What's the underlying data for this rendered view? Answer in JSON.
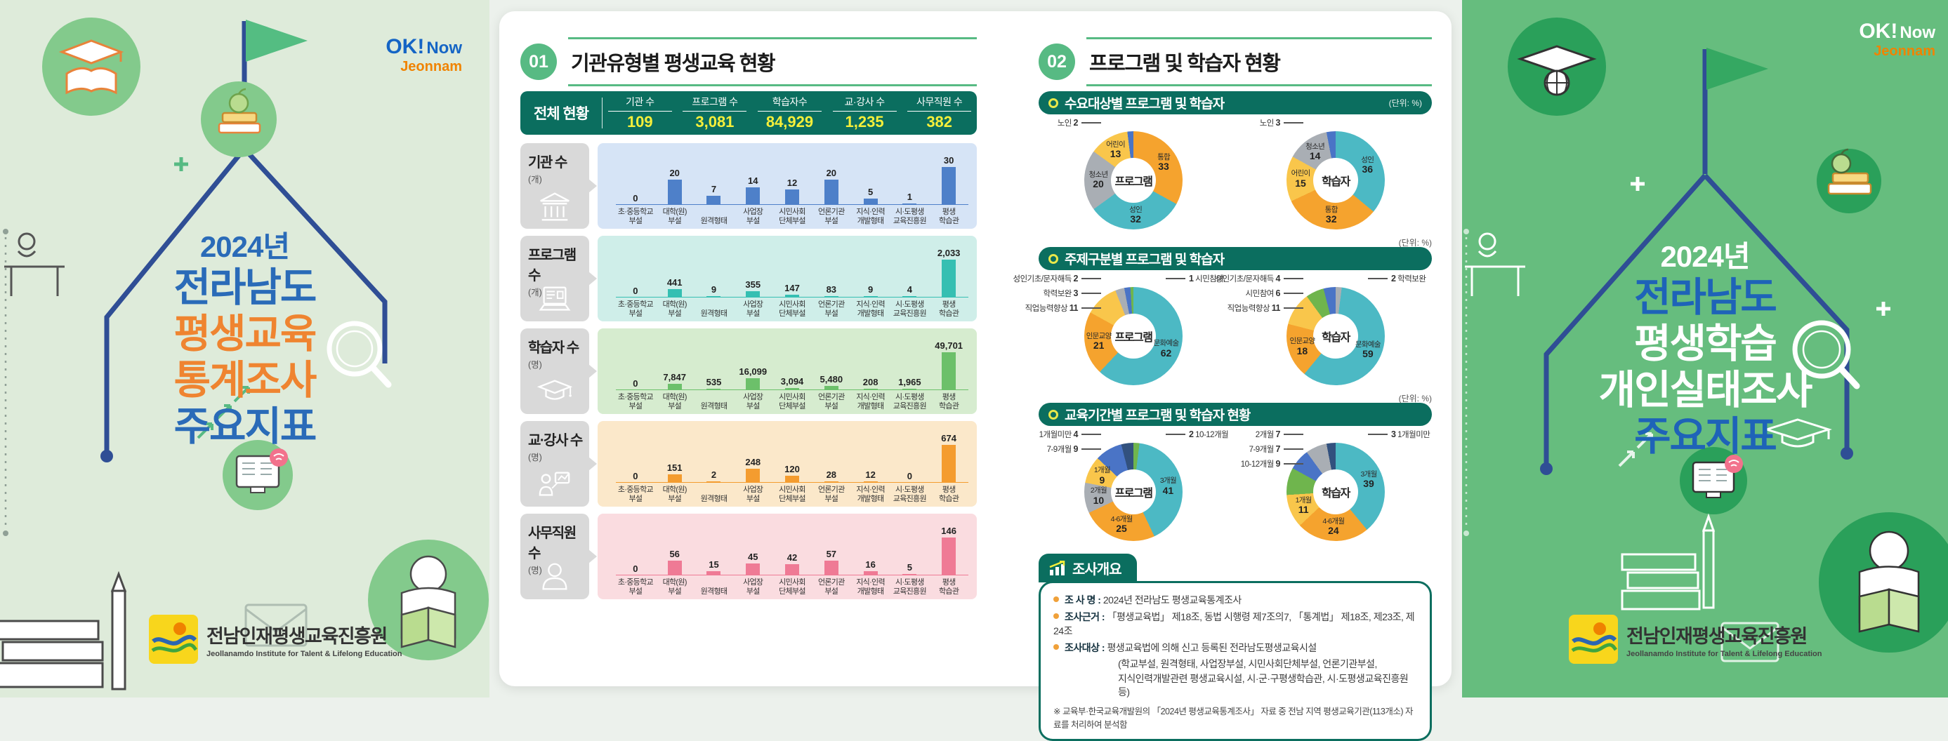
{
  "left_panel": {
    "ok_logo": {
      "ok": "OK!",
      "now": "Now",
      "jeonnam": "Jeonnam"
    },
    "title": [
      {
        "text": "2024년",
        "color": "#2A6BB8",
        "size": "small"
      },
      {
        "text": "전라남도",
        "color": "#2A6BB8"
      },
      {
        "text": "평생교육",
        "color": "#EF8430"
      },
      {
        "text": "통계조사",
        "color": "#EF8430"
      },
      {
        "text": "주요지표",
        "color": "#2A6BB8"
      }
    ],
    "logo": {
      "name": "전남인재평생교육진흥원",
      "sub": "Jeollanamdo Institute for Talent & Lifelong Education"
    }
  },
  "right_panel": {
    "ok_logo": {
      "ok": "OK!",
      "now": "Now",
      "jeonnam": "Jeonnam"
    },
    "title": [
      {
        "text": "2024년",
        "color": "#FFFFFF",
        "size": "small"
      },
      {
        "text": "전라남도",
        "color": "#1E63B8"
      },
      {
        "text": "평생학습",
        "color": "#FFFFFF"
      },
      {
        "text": "개인실태조사",
        "color": "#FFFFFF"
      },
      {
        "text": "주요지표",
        "color": "#1E63B8"
      }
    ],
    "logo": {
      "name": "전남인재평생교육진흥원",
      "sub": "Jeollanamdo Institute for Talent & Lifelong Education"
    }
  },
  "section1": {
    "badge": "01",
    "title": "기관유형별 평생교육 현황",
    "summary": {
      "row_label": "전체 현황",
      "value_color": "#F6EF3A",
      "cols": [
        {
          "label": "기관 수",
          "value": "109"
        },
        {
          "label": "프로그램 수",
          "value": "3,081"
        },
        {
          "label": "학습자수",
          "value": "84,929"
        },
        {
          "label": "교·강사 수",
          "value": "1,235"
        },
        {
          "label": "사무직원 수",
          "value": "382"
        }
      ]
    }
  },
  "section2": {
    "badge": "02",
    "title": "프로그램 및 학습자 현황"
  },
  "chart_data": {
    "bar": {
      "type": "bar",
      "categories": [
        "초·중등학교\n부설",
        "대학(원)\n부설",
        "원격형태",
        "사업장\n부설",
        "시민사회\n단체부설",
        "언론기관\n부설",
        "지식·인력\n개발형태",
        "시·도평생\n교육진흥원",
        "평생\n학습관"
      ],
      "charts": [
        {
          "name": "기관 수",
          "unit": "(개)",
          "icon": "bank-icon",
          "bg": "#D6E4F6",
          "bar_color": "#4E80C9",
          "values": [
            0,
            20,
            7,
            14,
            12,
            20,
            5,
            1,
            30
          ],
          "value_labels": [
            "0",
            "20",
            "7",
            "14",
            "12",
            "20",
            "5",
            "1",
            "30"
          ]
        },
        {
          "name": "프로그램 수",
          "unit": "(개)",
          "icon": "laptop-icon",
          "bg": "#CFEEE9",
          "bar_color": "#35BFB2",
          "values": [
            0,
            441,
            9,
            355,
            147,
            83,
            9,
            4,
            2033
          ],
          "value_labels": [
            "0",
            "441",
            "9",
            "355",
            "147",
            "83",
            "9",
            "4",
            "2,033"
          ]
        },
        {
          "name": "학습자 수",
          "unit": "(명)",
          "icon": "gradcap-icon",
          "bg": "#D6ECCF",
          "bar_color": "#6CC06A",
          "values": [
            0,
            7847,
            535,
            16099,
            3094,
            5480,
            208,
            1965,
            49701
          ],
          "value_labels": [
            "0",
            "7,847",
            "535",
            "16,099",
            "3,094",
            "5,480",
            "208",
            "1,965",
            "49,701"
          ]
        },
        {
          "name": "교·강사 수",
          "unit": "(명)",
          "icon": "teacher-icon",
          "bg": "#FBE8CA",
          "bar_color": "#F49C2F",
          "values": [
            0,
            151,
            2,
            248,
            120,
            28,
            12,
            0,
            674
          ],
          "value_labels": [
            "0",
            "151",
            "2",
            "248",
            "120",
            "28",
            "12",
            "0",
            "674"
          ]
        },
        {
          "name": "사무직원 수",
          "unit": "(명)",
          "icon": "person-icon",
          "bg": "#FADCE0",
          "bar_color": "#EF7A95",
          "values": [
            0,
            56,
            15,
            45,
            42,
            57,
            16,
            5,
            146
          ],
          "value_labels": [
            "0",
            "56",
            "15",
            "45",
            "42",
            "57",
            "16",
            "5",
            "146"
          ]
        }
      ]
    },
    "donut_groups": [
      {
        "type": "donut",
        "title": "수요대상별 프로그램 및 학습자",
        "unit": "(단위: %)",
        "unit_pos": "in",
        "donuts": [
          {
            "center": "프로그램",
            "slices": [
              {
                "label": "통합",
                "value": 33,
                "color": "#F5A32E",
                "pos": "in"
              },
              {
                "label": "성인",
                "value": 32,
                "color": "#4CB9C4",
                "pos": "in"
              },
              {
                "label": "청소년",
                "value": 20,
                "color": "#A9AEB4",
                "pos": "in"
              },
              {
                "label": "어린이",
                "value": 13,
                "color": "#F9C64B",
                "pos": "in"
              },
              {
                "label": "노인",
                "value": 2,
                "color": "#4A74C6",
                "pos": "left"
              }
            ]
          },
          {
            "center": "학습자",
            "slices": [
              {
                "label": "성인",
                "value": 36,
                "color": "#4CB9C4",
                "pos": "in"
              },
              {
                "label": "통합",
                "value": 32,
                "color": "#F5A32E",
                "pos": "in"
              },
              {
                "label": "어린이",
                "value": 15,
                "color": "#F9C64B",
                "pos": "in"
              },
              {
                "label": "청소년",
                "value": 14,
                "color": "#A9AEB4",
                "pos": "in"
              },
              {
                "label": "노인",
                "value": 3,
                "color": "#4A74C6",
                "pos": "left"
              }
            ]
          }
        ]
      },
      {
        "type": "donut",
        "title": "주제구분별 프로그램 및 학습자",
        "unit": "(단위: %)",
        "unit_pos": "above",
        "donuts": [
          {
            "center": "프로그램",
            "slices": [
              {
                "label": "문화예술",
                "value": 62,
                "color": "#4CB9C4",
                "pos": "in"
              },
              {
                "label": "인문교양",
                "value": 21,
                "color": "#F5A32E",
                "pos": "in"
              },
              {
                "label": "직업능력향상",
                "value": 11,
                "color": "#F9C64B",
                "pos": "left"
              },
              {
                "label": "학력보완",
                "value": 3,
                "color": "#A9AEB4",
                "pos": "left"
              },
              {
                "label": "성인기초/문자해득",
                "value": 2,
                "color": "#4A74C6",
                "pos": "left"
              },
              {
                "label": "시민참여",
                "value": 1,
                "color": "#6FB54D",
                "pos": "right"
              }
            ]
          },
          {
            "center": "학습자",
            "slices": [
              {
                "label": "학력보완",
                "value": 2,
                "color": "#A9AEB4",
                "pos": "right"
              },
              {
                "label": "문화예술",
                "value": 59,
                "color": "#4CB9C4",
                "pos": "in"
              },
              {
                "label": "인문교양",
                "value": 18,
                "color": "#F5A32E",
                "pos": "in"
              },
              {
                "label": "직업능력향상",
                "value": 11,
                "color": "#F9C64B",
                "pos": "left"
              },
              {
                "label": "시민참여",
                "value": 6,
                "color": "#6FB54D",
                "pos": "left"
              },
              {
                "label": "성인기초/문자해득",
                "value": 4,
                "color": "#4A74C6",
                "pos": "left"
              }
            ]
          }
        ]
      },
      {
        "type": "donut",
        "title": "교육기간별 프로그램 및 학습자 현황",
        "unit": "(단위: %)",
        "unit_pos": "above",
        "donuts": [
          {
            "center": "프로그램",
            "slices": [
              {
                "label": "10-12개월",
                "value": 2,
                "color": "#6FB54D",
                "pos": "right"
              },
              {
                "label": "3개월",
                "value": 41,
                "color": "#4CB9C4",
                "pos": "in"
              },
              {
                "label": "4-6개월",
                "value": 25,
                "color": "#F5A32E",
                "pos": "in"
              },
              {
                "label": "2개월",
                "value": 10,
                "color": "#A9AEB4",
                "pos": "in"
              },
              {
                "label": "1개월",
                "value": 9,
                "color": "#F9C64B",
                "pos": "in"
              },
              {
                "label": "7-9개월",
                "value": 9,
                "color": "#4A74C6",
                "pos": "left"
              },
              {
                "label": "1개월미만",
                "value": 4,
                "color": "#32517E",
                "pos": "left"
              }
            ]
          },
          {
            "center": "학습자",
            "slices": [
              {
                "label": "3개월",
                "value": 39,
                "color": "#4CB9C4",
                "pos": "in"
              },
              {
                "label": "4-6개월",
                "value": 24,
                "color": "#F5A32E",
                "pos": "in"
              },
              {
                "label": "1개월",
                "value": 11,
                "color": "#F9C64B",
                "pos": "in"
              },
              {
                "label": "10-12개월",
                "value": 9,
                "color": "#6FB54D",
                "pos": "left"
              },
              {
                "label": "7-9개월",
                "value": 7,
                "color": "#4A74C6",
                "pos": "left"
              },
              {
                "label": "2개월",
                "value": 7,
                "color": "#A9AEB4",
                "pos": "left"
              },
              {
                "label": "1개월미만",
                "value": 3,
                "color": "#32517E",
                "pos": "right"
              }
            ]
          }
        ]
      }
    ]
  },
  "overview": {
    "tab": "조사개요",
    "items": [
      {
        "label": "조 사 명",
        "text": "2024년 전라남도 평생교육통계조사"
      },
      {
        "label": "조사근거",
        "text": "「평생교육법」 제18조, 동법 시행령 제7조의7, 「통계법」 제18조, 제23조, 제24조"
      },
      {
        "label": "조사대상",
        "text": "평생교육법에 의해 신고 등록된 전라남도평생교육시설",
        "extra": [
          "(학교부설, 원격형태, 사업장부설, 시민사회단체부설, 언론기관부설,",
          "지식인력개발관련 평생교육시설, 시·군·구평생학습관, 시·도평생교육진흥원 등)"
        ]
      }
    ],
    "note": "※ 교육부·한국교육개발원의 「2024년 평생교육통계조사」 자료 중 전남 지역 평생교육기관(113개소) 자료를 처리하여 분석함"
  }
}
